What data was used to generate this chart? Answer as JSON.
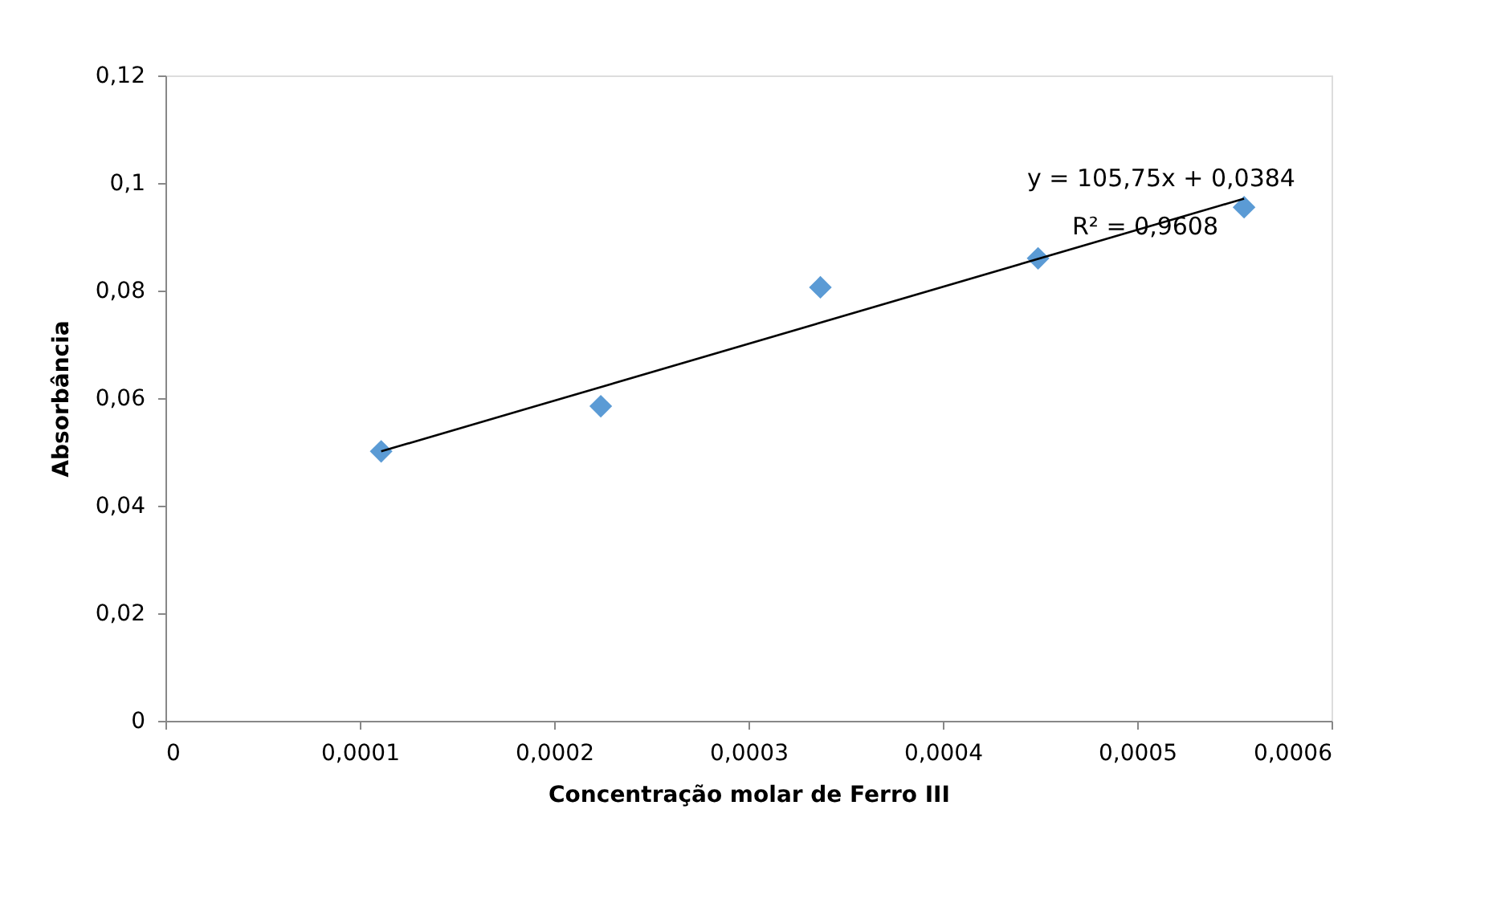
{
  "chart_data": {
    "type": "scatter",
    "xlabel": "Concentração  molar de Ferro III",
    "ylabel": "Absorbância",
    "x": [
      0.000111,
      0.000224,
      0.000337,
      0.000449,
      0.000555
    ],
    "series": [
      {
        "color": "#5b9bd5",
        "marker": "diamond",
        "values": [
          0.0501,
          0.0585,
          0.0806,
          0.086,
          0.0955
        ]
      },
      {
        "type": "line",
        "color": "#000000",
        "marker": "none",
        "line_style": "solid",
        "x": [
          0.000111,
          0.000555
        ],
        "values": [
          0.0501,
          0.0971
        ]
      }
    ],
    "xlim": [
      0,
      0.0006
    ],
    "xticks": [
      0,
      {
        "value": 0.0001,
        "label": "0,0001"
      },
      {
        "value": 0.0002,
        "label": "0,0002"
      },
      {
        "value": 0.0003,
        "label": "0,0003"
      },
      {
        "value": 0.0004,
        "label": "0,0004"
      },
      {
        "value": 0.0005,
        "label": "0,0005"
      },
      {
        "value": 0.0006,
        "label": "0,0006"
      }
    ],
    "ylim": [
      0,
      0.12
    ],
    "yticks": [
      0,
      {
        "value": 0.02,
        "label": "0,02"
      },
      {
        "value": 0.04,
        "label": "0,04"
      },
      {
        "value": 0.06,
        "label": "0,06"
      },
      {
        "value": 0.08,
        "label": "0,08"
      },
      {
        "value": 0.1,
        "label": "0,1"
      },
      {
        "value": 0.12,
        "label": "0,12"
      }
    ],
    "annotations": [
      "y = 105,75x + 0,0384",
      "R² = 0,9608"
    ],
    "grid": false
  }
}
